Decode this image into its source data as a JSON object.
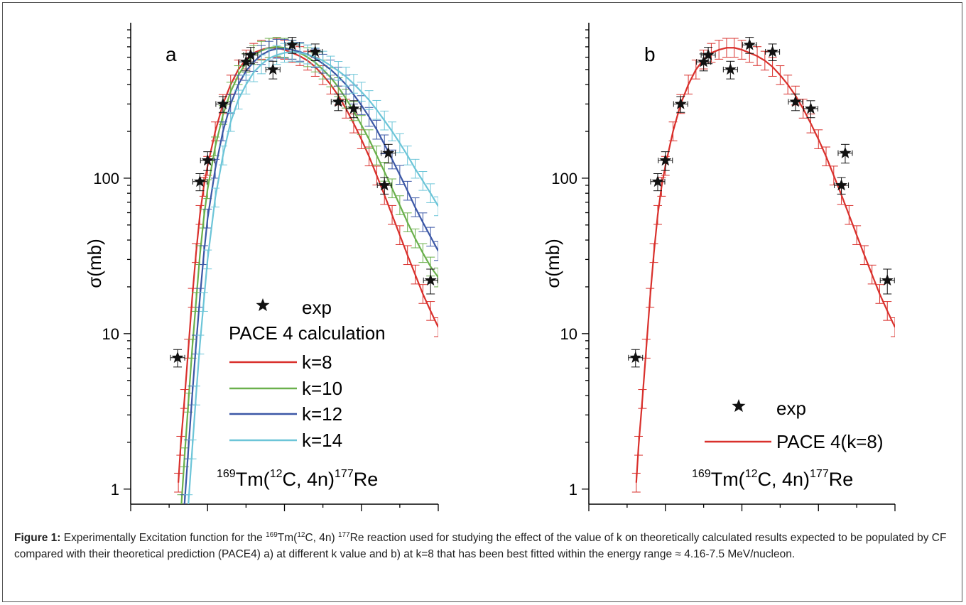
{
  "caption": {
    "label": "Figure 1:",
    "text_1": " Experimentally Excitation function for the ",
    "iso_1": "169",
    "text_2": "Tm(",
    "iso_2": "12",
    "text_3": "C, 4n) ",
    "iso_3": "177",
    "text_4": "Re reaction used for studying the effect of the value of k on theoretically calculated results expected to be populated by CF compared with their theoretical prediction (PACE4) a) at different k value and b) at k=8 that has been best fitted within the energy range ≈ 4.16-7.5 MeV/nucleon."
  },
  "colors": {
    "exp": "#111111",
    "k8": "#d9302c",
    "k10": "#6ab04c",
    "k12": "#3b57a6",
    "k14": "#6cc5d8"
  },
  "chart_data": [
    {
      "panel_letter": "a",
      "type": "scatter",
      "ylabel": "σ(mb)",
      "yscale": "log",
      "ylim": [
        0.8,
        1000
      ],
      "yticks": [
        1,
        10,
        100
      ],
      "ytick_labels": [
        "1",
        "10",
        "100"
      ],
      "xlim": [
        0,
        4
      ],
      "xticks": [
        0,
        1,
        2,
        3,
        4
      ],
      "xtick_labels": [
        "",
        "",
        "",
        "",
        ""
      ],
      "reaction": {
        "a1": "169",
        "t1": "Tm(",
        "a2": "12",
        "t2": "C, 4n)",
        "a3": "177",
        "t3": "Re"
      },
      "legend": {
        "exp_label": "exp",
        "header": "PACE 4 calculation",
        "entries": [
          "k=8",
          "k=10",
          "k=12",
          "k=14"
        ]
      },
      "exp": {
        "x": [
          0.61,
          0.9,
          1.0,
          1.2,
          1.5,
          1.56,
          1.85,
          2.1,
          2.4,
          2.7,
          2.9,
          3.3,
          3.35,
          3.9
        ],
        "y": [
          7,
          95,
          130,
          300,
          560,
          620,
          500,
          720,
          650,
          310,
          280,
          90,
          145,
          22
        ],
        "err": [
          0.9,
          12,
          18,
          35,
          70,
          75,
          65,
          85,
          80,
          38,
          35,
          11,
          20,
          4
        ]
      },
      "series": [
        {
          "name": "k=8",
          "color_key": "k8",
          "x": [
            0.62,
            0.65,
            0.7,
            0.75,
            0.8,
            0.85,
            0.9,
            0.95,
            1.0,
            1.1,
            1.2,
            1.3,
            1.4,
            1.5,
            1.6,
            1.7,
            1.8,
            1.9,
            2.0,
            2.1,
            2.2,
            2.3,
            2.4,
            2.5,
            2.6,
            2.7,
            2.8,
            2.9,
            3.0,
            3.1,
            3.2,
            3.3,
            3.4,
            3.5,
            3.6,
            3.7,
            3.8,
            3.9,
            4.0
          ],
          "y": [
            1.1,
            1.9,
            3.8,
            8,
            17,
            33,
            58,
            88,
            120,
            200,
            300,
            400,
            500,
            580,
            640,
            670,
            690,
            690,
            670,
            640,
            610,
            570,
            520,
            460,
            400,
            340,
            280,
            225,
            178,
            138,
            104,
            78,
            58,
            43,
            32,
            24,
            18,
            14,
            11
          ]
        },
        {
          "name": "k=10",
          "color_key": "k10",
          "x": [
            0.66,
            0.7,
            0.75,
            0.8,
            0.85,
            0.9,
            0.95,
            1.0,
            1.1,
            1.2,
            1.3,
            1.4,
            1.5,
            1.6,
            1.7,
            1.8,
            1.9,
            2.0,
            2.1,
            2.2,
            2.3,
            2.4,
            2.5,
            2.6,
            2.7,
            2.8,
            2.9,
            3.0,
            3.1,
            3.2,
            3.3,
            3.4,
            3.5,
            3.6,
            3.7,
            3.8,
            3.9,
            4.0
          ],
          "y": [
            0.8,
            1.6,
            3.6,
            8,
            16,
            32,
            55,
            85,
            160,
            255,
            360,
            460,
            550,
            620,
            660,
            690,
            700,
            690,
            670,
            640,
            600,
            555,
            500,
            445,
            385,
            325,
            270,
            220,
            178,
            140,
            110,
            86,
            67,
            52,
            41,
            33,
            27,
            23
          ]
        },
        {
          "name": "k=12",
          "color_key": "k12",
          "x": [
            0.7,
            0.75,
            0.8,
            0.85,
            0.9,
            0.95,
            1.0,
            1.1,
            1.2,
            1.3,
            1.4,
            1.5,
            1.6,
            1.7,
            1.8,
            1.9,
            2.0,
            2.1,
            2.2,
            2.3,
            2.4,
            2.5,
            2.6,
            2.7,
            2.8,
            2.9,
            3.0,
            3.1,
            3.2,
            3.3,
            3.4,
            3.5,
            3.6,
            3.7,
            3.8,
            3.9,
            4.0
          ],
          "y": [
            0.8,
            1.8,
            4,
            8.5,
            17,
            32,
            55,
            115,
            200,
            300,
            400,
            490,
            560,
            620,
            660,
            680,
            680,
            670,
            650,
            625,
            590,
            545,
            500,
            450,
            400,
            345,
            295,
            248,
            205,
            165,
            132,
            105,
            83,
            65,
            52,
            42,
            34
          ]
        },
        {
          "name": "k=14",
          "color_key": "k14",
          "x": [
            0.75,
            0.8,
            0.85,
            0.9,
            0.95,
            1.0,
            1.1,
            1.2,
            1.3,
            1.4,
            1.5,
            1.6,
            1.7,
            1.8,
            1.9,
            2.0,
            2.1,
            2.2,
            2.3,
            2.4,
            2.5,
            2.6,
            2.7,
            2.8,
            2.9,
            3.0,
            3.1,
            3.2,
            3.3,
            3.4,
            3.5,
            3.6,
            3.7,
            3.8,
            3.9,
            4.0
          ],
          "y": [
            0.8,
            1.8,
            4,
            8.5,
            16,
            30,
            75,
            140,
            230,
            320,
            400,
            480,
            540,
            590,
            620,
            640,
            650,
            640,
            625,
            600,
            570,
            530,
            490,
            450,
            405,
            360,
            318,
            275,
            235,
            200,
            168,
            140,
            115,
            96,
            80,
            66
          ]
        }
      ]
    },
    {
      "panel_letter": "b",
      "type": "scatter",
      "ylabel": "σ(mb)",
      "yscale": "log",
      "ylim": [
        0.8,
        1000
      ],
      "yticks": [
        1,
        10,
        100
      ],
      "ytick_labels": [
        "1",
        "10",
        "100"
      ],
      "xlim": [
        0,
        4
      ],
      "xticks": [
        0,
        1,
        2,
        3,
        4
      ],
      "xtick_labels": [
        "",
        "",
        "",
        "",
        ""
      ],
      "reaction": {
        "a1": "169",
        "t1": "Tm(",
        "a2": "12",
        "t2": "C, 4n)",
        "a3": "177",
        "t3": "Re"
      },
      "legend": {
        "exp_label": "exp",
        "entries": [
          "PACE 4(k=8)"
        ]
      },
      "exp": {
        "x": [
          0.61,
          0.9,
          1.0,
          1.2,
          1.5,
          1.56,
          1.85,
          2.1,
          2.4,
          2.7,
          2.9,
          3.3,
          3.35,
          3.9
        ],
        "y": [
          7,
          95,
          130,
          300,
          560,
          620,
          500,
          720,
          650,
          310,
          280,
          90,
          145,
          22
        ],
        "err": [
          0.9,
          12,
          18,
          35,
          70,
          75,
          65,
          85,
          80,
          38,
          35,
          11,
          20,
          4
        ]
      },
      "series": [
        {
          "name": "PACE 4(k=8)",
          "color_key": "k8",
          "x": [
            0.62,
            0.65,
            0.7,
            0.75,
            0.8,
            0.85,
            0.9,
            0.95,
            1.0,
            1.1,
            1.2,
            1.3,
            1.4,
            1.5,
            1.6,
            1.7,
            1.8,
            1.9,
            2.0,
            2.1,
            2.2,
            2.3,
            2.4,
            2.5,
            2.6,
            2.7,
            2.8,
            2.9,
            3.0,
            3.1,
            3.2,
            3.3,
            3.4,
            3.5,
            3.6,
            3.7,
            3.8,
            3.9,
            4.0
          ],
          "y": [
            1.1,
            1.9,
            3.8,
            8,
            17,
            33,
            58,
            88,
            120,
            200,
            300,
            400,
            500,
            580,
            640,
            670,
            690,
            690,
            670,
            640,
            610,
            570,
            520,
            460,
            400,
            340,
            280,
            225,
            178,
            138,
            104,
            78,
            58,
            43,
            32,
            24,
            18,
            14,
            11
          ]
        }
      ]
    }
  ]
}
